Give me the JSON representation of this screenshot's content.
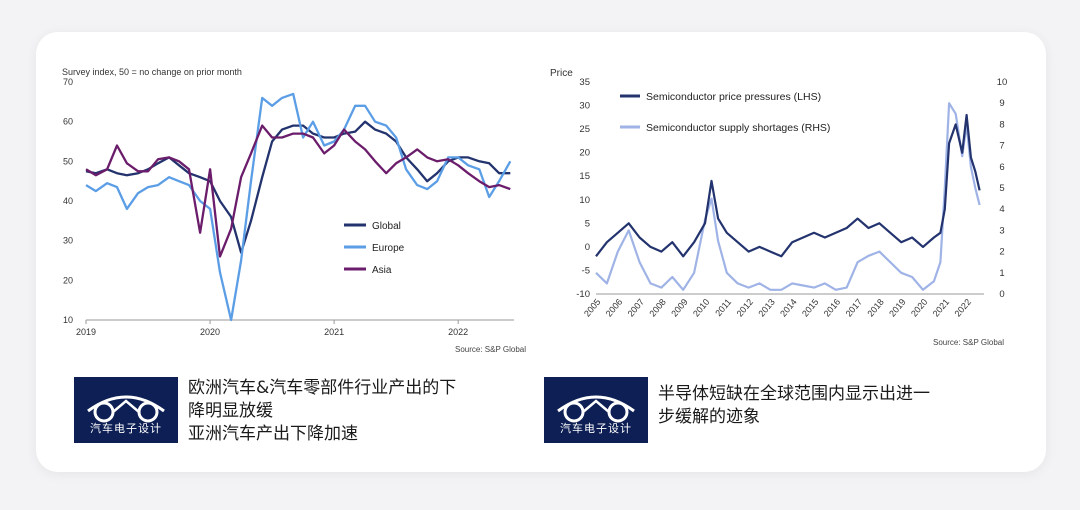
{
  "chart_data": [
    {
      "type": "line",
      "subtitle": "Survey index, 50 = no change on prior month",
      "ylim": [
        10,
        70
      ],
      "yticks": [
        10,
        20,
        30,
        40,
        50,
        60,
        70
      ],
      "xlim": [
        2019.0,
        2022.45
      ],
      "xticks": [
        2019,
        2020,
        2021,
        2022
      ],
      "source": "Source: S&P Global",
      "grid": false,
      "legend": "center-right",
      "series": [
        {
          "name": "Global",
          "color": "#23336e",
          "x": [
            2019.0,
            2019.08,
            2019.17,
            2019.25,
            2019.33,
            2019.42,
            2019.5,
            2019.58,
            2019.67,
            2019.75,
            2019.83,
            2019.92,
            2020.0,
            2020.08,
            2020.17,
            2020.25,
            2020.33,
            2020.42,
            2020.5,
            2020.58,
            2020.67,
            2020.75,
            2020.83,
            2020.92,
            2021.0,
            2021.08,
            2021.17,
            2021.25,
            2021.33,
            2021.42,
            2021.5,
            2021.58,
            2021.67,
            2021.75,
            2021.83,
            2021.92,
            2022.0,
            2022.08,
            2022.17,
            2022.25,
            2022.33,
            2022.42
          ],
          "values": [
            47.5,
            47,
            48,
            47,
            46.5,
            47,
            48,
            49.5,
            51,
            49,
            47,
            46,
            45,
            40,
            36,
            27,
            35,
            46,
            55,
            58,
            59,
            59,
            57,
            56,
            56,
            57,
            57.5,
            60,
            58,
            57,
            55,
            51,
            48,
            45,
            47,
            50,
            51,
            51,
            50,
            49.5,
            47,
            47
          ]
        },
        {
          "name": "Europe",
          "color": "#5b9ee6",
          "x": [
            2019.0,
            2019.08,
            2019.17,
            2019.25,
            2019.33,
            2019.42,
            2019.5,
            2019.58,
            2019.67,
            2019.75,
            2019.83,
            2019.92,
            2020.0,
            2020.08,
            2020.17,
            2020.25,
            2020.33,
            2020.42,
            2020.5,
            2020.58,
            2020.67,
            2020.75,
            2020.83,
            2020.92,
            2021.0,
            2021.08,
            2021.17,
            2021.25,
            2021.33,
            2021.42,
            2021.5,
            2021.58,
            2021.67,
            2021.75,
            2021.83,
            2021.92,
            2022.0,
            2022.08,
            2022.17,
            2022.25,
            2022.33,
            2022.42
          ],
          "values": [
            44,
            42.5,
            44.5,
            43.5,
            38,
            42,
            43.5,
            44,
            46,
            45,
            44,
            40,
            38,
            22,
            10,
            25,
            45,
            66,
            64,
            66,
            67,
            56,
            60,
            54,
            55,
            58,
            64,
            64,
            60,
            59,
            56,
            48,
            44,
            43,
            45,
            51,
            51,
            49,
            48,
            41,
            45,
            50
          ]
        },
        {
          "name": "Asia",
          "color": "#6b1d6b",
          "x": [
            2019.0,
            2019.08,
            2019.17,
            2019.25,
            2019.33,
            2019.42,
            2019.5,
            2019.58,
            2019.67,
            2019.75,
            2019.83,
            2019.92,
            2020.0,
            2020.08,
            2020.17,
            2020.25,
            2020.33,
            2020.42,
            2020.5,
            2020.58,
            2020.67,
            2020.75,
            2020.83,
            2020.92,
            2021.0,
            2021.08,
            2021.17,
            2021.25,
            2021.33,
            2021.42,
            2021.5,
            2021.58,
            2021.67,
            2021.75,
            2021.83,
            2021.92,
            2022.0,
            2022.08,
            2022.17,
            2022.25,
            2022.33,
            2022.42
          ],
          "values": [
            48,
            46.5,
            48,
            54,
            49.5,
            47.5,
            47.5,
            50.5,
            51,
            50,
            48,
            32,
            48,
            26,
            33,
            46,
            52,
            59,
            56,
            56,
            57,
            57,
            56,
            52,
            54,
            58,
            55,
            53,
            50,
            47,
            49.5,
            51,
            53,
            51,
            50,
            50.5,
            49,
            47,
            45,
            43.5,
            44,
            43
          ]
        }
      ]
    },
    {
      "type": "line",
      "ylabel_left": "Price",
      "ylim_left": [
        -10,
        35
      ],
      "yticks_left": [
        -10,
        -5,
        0,
        5,
        10,
        15,
        20,
        25,
        30,
        35
      ],
      "ylim_right": [
        0,
        10
      ],
      "yticks_right": [
        0,
        1,
        2,
        3,
        4,
        5,
        6,
        7,
        8,
        9,
        10
      ],
      "xlim": [
        2005,
        2022.8
      ],
      "xticks": [
        2005,
        2006,
        2007,
        2008,
        2009,
        2010,
        2011,
        2012,
        2013,
        2014,
        2015,
        2016,
        2017,
        2018,
        2019,
        2020,
        2021,
        2022
      ],
      "source": "Source: S&P Global",
      "grid": false,
      "legend": "top-left",
      "series": [
        {
          "name": "Semiconductor price pressures (LHS)",
          "axis": "left",
          "color": "#23336e",
          "x": [
            2005,
            2005.5,
            2006,
            2006.5,
            2007,
            2007.5,
            2008,
            2008.5,
            2009,
            2009.5,
            2010,
            2010.3,
            2010.6,
            2011,
            2011.5,
            2012,
            2012.5,
            2013,
            2013.5,
            2014,
            2014.5,
            2015,
            2015.5,
            2016,
            2016.5,
            2017,
            2017.5,
            2018,
            2018.5,
            2019,
            2019.5,
            2020,
            2020.5,
            2020.8,
            2021,
            2021.2,
            2021.5,
            2021.8,
            2022,
            2022.2,
            2022.4,
            2022.6
          ],
          "values": [
            -2,
            1,
            3,
            5,
            2,
            0,
            -1,
            1,
            -2,
            1,
            5,
            14,
            6,
            3,
            1,
            -1,
            0,
            -1,
            -2,
            1,
            2,
            3,
            2,
            3,
            4,
            6,
            4,
            5,
            3,
            1,
            2,
            0,
            2,
            3,
            8,
            22,
            26,
            20,
            28,
            19,
            16,
            12
          ]
        },
        {
          "name": "Semiconductor supply shortages (RHS)",
          "axis": "right",
          "color": "#9fb3e6",
          "x": [
            2005,
            2005.5,
            2006,
            2006.5,
            2007,
            2007.5,
            2008,
            2008.5,
            2009,
            2009.5,
            2010,
            2010.3,
            2010.6,
            2011,
            2011.5,
            2012,
            2012.5,
            2013,
            2013.5,
            2014,
            2014.5,
            2015,
            2015.5,
            2016,
            2016.5,
            2017,
            2017.5,
            2018,
            2018.5,
            2019,
            2019.5,
            2020,
            2020.5,
            2020.8,
            2021,
            2021.2,
            2021.5,
            2021.8,
            2022,
            2022.2,
            2022.4,
            2022.6
          ],
          "values": [
            1,
            0.5,
            2,
            3,
            1.5,
            0.5,
            0.3,
            0.8,
            0.2,
            1,
            3.5,
            4.5,
            2.5,
            1,
            0.5,
            0.3,
            0.5,
            0.2,
            0.2,
            0.5,
            0.4,
            0.3,
            0.5,
            0.2,
            0.3,
            1.5,
            1.8,
            2,
            1.5,
            1,
            0.8,
            0.2,
            0.6,
            1.5,
            5,
            9,
            8.5,
            6.5,
            8,
            6,
            5,
            4.2
          ]
        }
      ]
    }
  ],
  "captions": [
    {
      "logo_text": "汽车电子设计",
      "lines": [
        "欧洲汽车&汽车零部件行业产出的下",
        "降明显放缓",
        "亚洲汽车产出下降加速"
      ]
    },
    {
      "logo_text": "汽车电子设计",
      "lines": [
        "半导体短缺在全球范围内显示出进一",
        "步缓解的迹象"
      ]
    }
  ]
}
